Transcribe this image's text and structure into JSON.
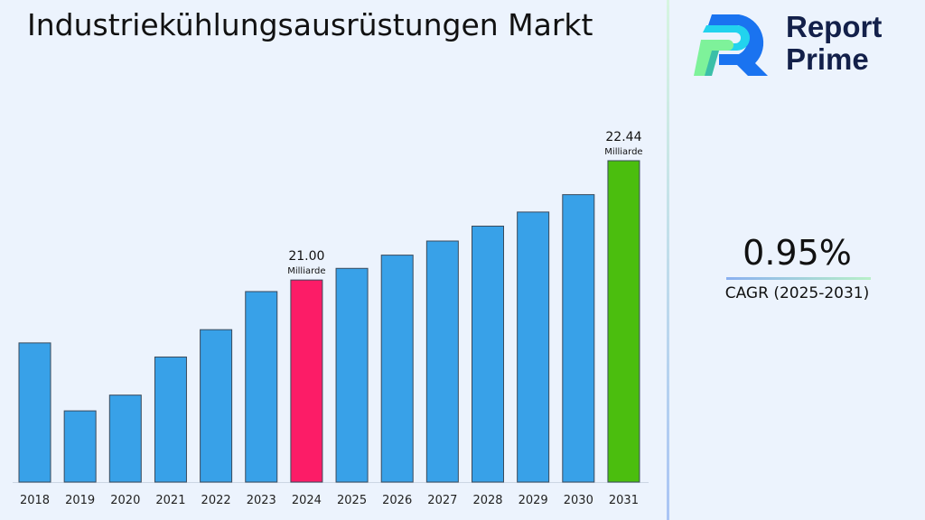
{
  "chart_data": {
    "type": "bar",
    "title": "Industriekühlungsausrüstungen Markt",
    "categories": [
      "2018",
      "2019",
      "2020",
      "2021",
      "2022",
      "2023",
      "2024",
      "2025",
      "2026",
      "2027",
      "2028",
      "2029",
      "2030",
      "2031"
    ],
    "values": [
      20.24,
      19.42,
      19.61,
      20.07,
      20.4,
      20.86,
      21.0,
      21.14,
      21.3,
      21.47,
      21.65,
      21.82,
      22.03,
      22.44
    ],
    "ylim": [
      18.56,
      22.44
    ],
    "grid": false,
    "colors": {
      "default": "#38a1e8",
      "highlight_2024": "#fc1c67",
      "highlight_2031": "#4bbe0e"
    },
    "annotations": [
      {
        "category": "2024",
        "value_label": "21.00",
        "unit": "Milliarde"
      },
      {
        "category": "2031",
        "value_label": "22.44",
        "unit": "Milliarde"
      }
    ]
  },
  "brand": {
    "name_line1": "Report",
    "name_line2": "Prime",
    "icon": "report-prime-logo"
  },
  "cagr": {
    "value": "0.95%",
    "label": "CAGR (2025-2031)"
  }
}
